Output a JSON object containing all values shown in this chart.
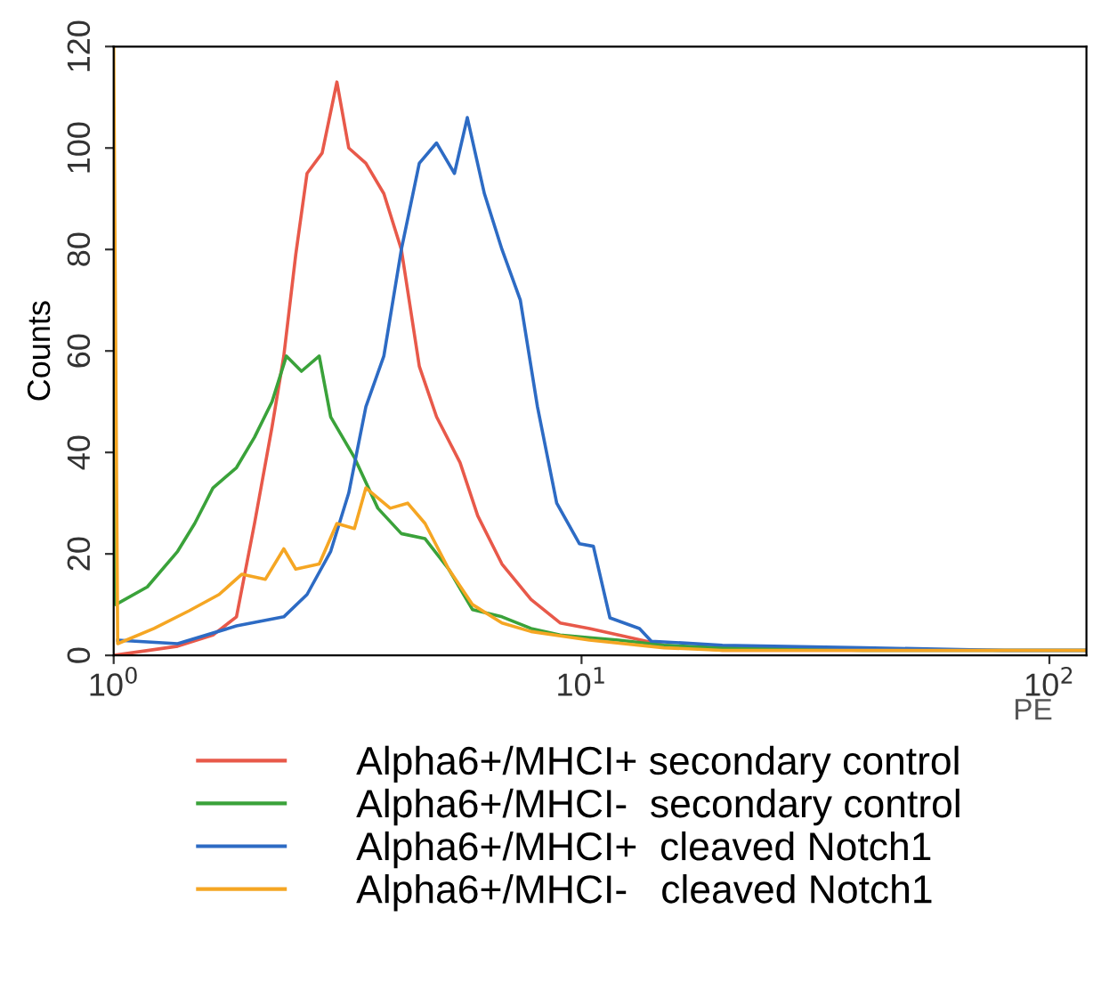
{
  "chart_data": {
    "type": "line",
    "xlabel": "PE",
    "ylabel": "Counts",
    "log": "x",
    "xlim": [
      1,
      120
    ],
    "ylim": [
      0,
      120
    ],
    "xticks": [
      {
        "value": 1,
        "label": "10$^{0}$"
      },
      {
        "value": 10,
        "label": "10$^{1}$"
      },
      {
        "value": 100,
        "label": "10$^{2}$"
      }
    ],
    "yticks": [
      0,
      20,
      40,
      60,
      80,
      100,
      120
    ],
    "grid": false,
    "legend": "bottom",
    "marker": "none",
    "line_style": "solid",
    "series": [
      {
        "name": "Alpha6+/MHCI+ secondary control",
        "color": "#e8594a",
        "x": [
          1.0,
          1.37,
          1.63,
          1.83,
          2.0,
          2.18,
          2.31,
          2.45,
          2.59,
          2.79,
          3.0,
          3.18,
          3.46,
          3.78,
          4.12,
          4.5,
          4.9,
          5.5,
          6.0,
          6.76,
          7.8,
          9.0,
          10.4,
          12,
          15,
          20,
          40,
          80,
          120
        ],
        "values": [
          0,
          1.8,
          4,
          7.6,
          26,
          45,
          59,
          79,
          95,
          99,
          113,
          100,
          97,
          91,
          80,
          57,
          47,
          38,
          27.5,
          18,
          11,
          6.4,
          5.3,
          4,
          2,
          1,
          1,
          1,
          1
        ]
      },
      {
        "name": "Alpha6+/MHCI-  secondary control",
        "color": "#3aa23a",
        "x": [
          1.0,
          1.01,
          1.18,
          1.37,
          1.49,
          1.63,
          1.83,
          2.0,
          2.18,
          2.34,
          2.52,
          2.75,
          2.91,
          3.27,
          3.67,
          4.12,
          4.63,
          5.2,
          5.85,
          6.76,
          7.8,
          9.0,
          10.4,
          12,
          15,
          20,
          40,
          80,
          120
        ],
        "values": [
          63,
          10,
          13.5,
          20.5,
          26,
          33,
          37,
          43,
          50,
          59,
          56,
          59,
          47,
          39,
          29,
          24,
          23,
          17,
          9,
          7.6,
          5.3,
          4,
          3.5,
          3,
          2,
          1.5,
          1,
          1,
          1
        ]
      },
      {
        "name": "Alpha6+/MHCI+  cleaved Notch1",
        "color": "#2d6bc4",
        "x": [
          1.02,
          1.37,
          1.83,
          2.31,
          2.59,
          2.91,
          3.18,
          3.46,
          3.78,
          4.12,
          4.5,
          4.9,
          5.35,
          5.7,
          6.2,
          6.76,
          7.4,
          8.05,
          8.85,
          9.9,
          10.6,
          11.5,
          13.3,
          14.1,
          20,
          40,
          80,
          120
        ],
        "values": [
          3,
          2.3,
          5.8,
          7.6,
          12,
          20.5,
          32,
          49,
          59,
          80,
          97,
          101,
          95,
          106,
          91,
          80,
          70,
          49,
          30,
          22,
          21.5,
          7.4,
          5.3,
          2.8,
          2,
          1.5,
          1,
          1
        ]
      },
      {
        "name": "Alpha6+/MHCI-   cleaved Notch1",
        "color": "#f5a623",
        "x": [
          1.0,
          1.02,
          1.22,
          1.45,
          1.68,
          1.88,
          2.11,
          2.31,
          2.45,
          2.75,
          3.0,
          3.27,
          3.46,
          3.9,
          4.25,
          4.63,
          5.2,
          5.85,
          6.76,
          7.8,
          10.4,
          15,
          20,
          40,
          80,
          120
        ],
        "values": [
          120,
          2.3,
          5.3,
          8.8,
          12,
          16,
          15,
          21,
          17,
          18,
          26,
          25,
          33,
          29,
          30,
          26,
          17,
          10,
          6.4,
          4.7,
          3,
          1.5,
          1,
          1,
          1,
          1
        ]
      }
    ]
  }
}
